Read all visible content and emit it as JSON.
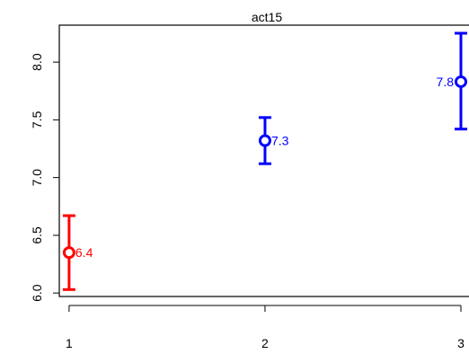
{
  "chart_data": {
    "type": "scatter",
    "title": "act15",
    "xlabel": "",
    "ylabel": "",
    "x_ticks": [
      "1",
      "2",
      "3"
    ],
    "y_ticks": [
      "6.0",
      "6.5",
      "7.0",
      "7.5",
      "8.0"
    ],
    "xlim": [
      0.95,
      3.0
    ],
    "ylim": [
      5.97,
      8.32
    ],
    "grid": false,
    "points": [
      {
        "x": 1,
        "y": 6.35,
        "lower": 6.03,
        "upper": 6.67,
        "label": "6.4",
        "color": "#ff0000",
        "label_side": "right"
      },
      {
        "x": 2,
        "y": 7.32,
        "lower": 7.12,
        "upper": 7.52,
        "label": "7.3",
        "color": "#0000ff",
        "label_side": "right"
      },
      {
        "x": 3,
        "y": 7.83,
        "lower": 7.42,
        "upper": 8.25,
        "label": "7.8",
        "color": "#0000ff",
        "label_side": "left"
      }
    ]
  }
}
